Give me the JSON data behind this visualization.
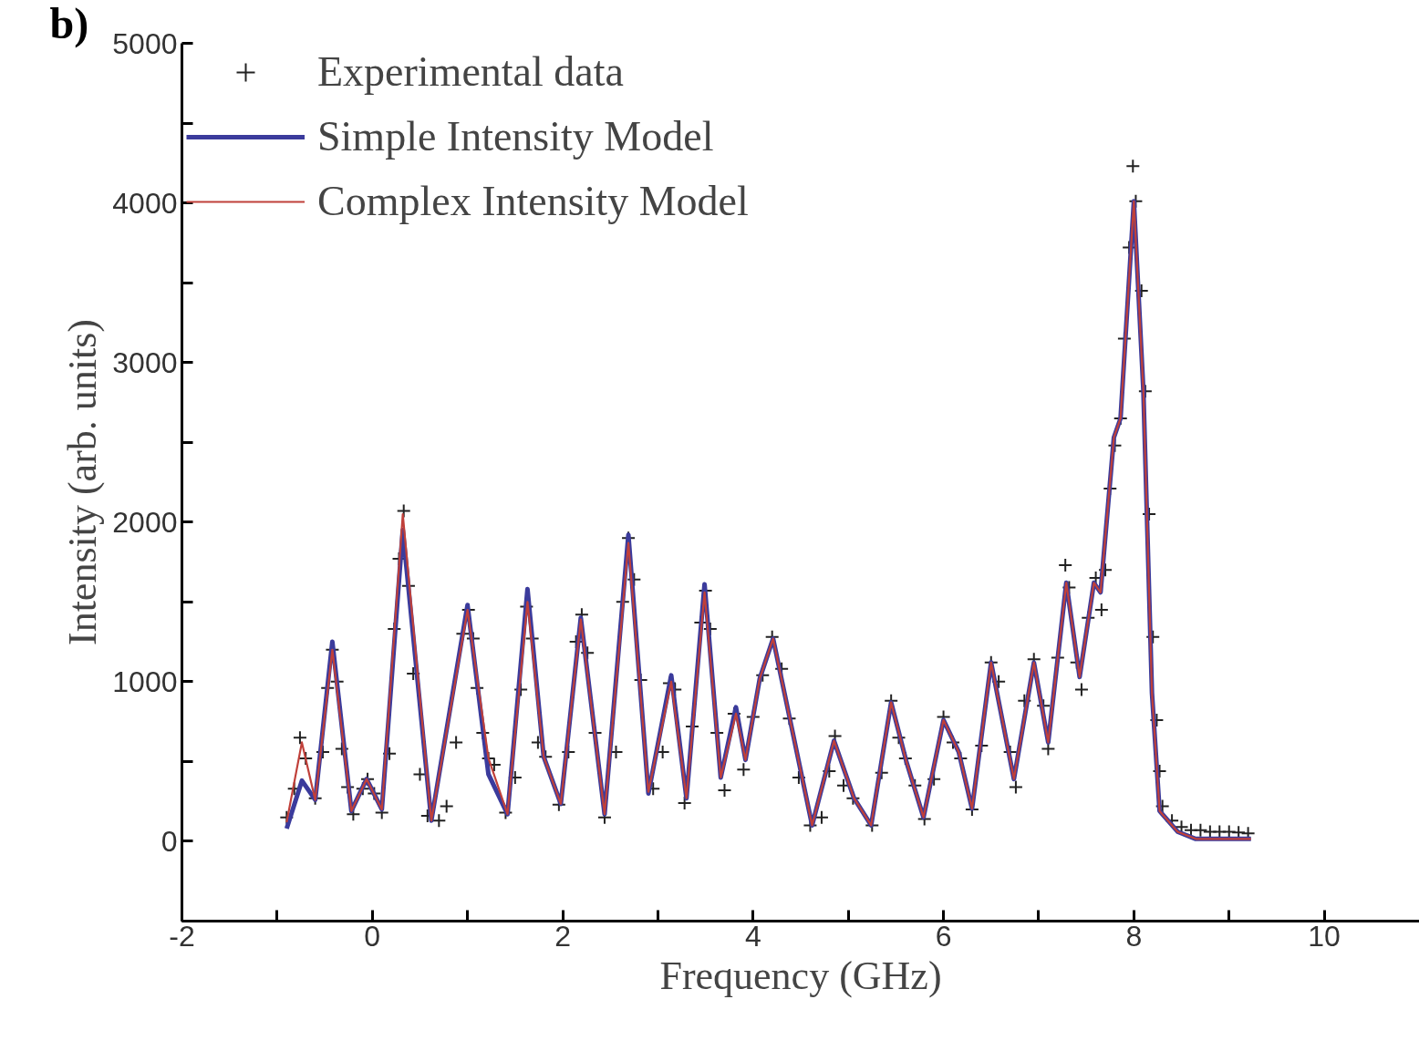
{
  "chart_data": {
    "type": "line",
    "xlabel": "Frequency (GHz)",
    "ylabel": "Intensity (arb. units)",
    "annotations": [
      "b)"
    ],
    "xlim": [
      -2,
      11
    ],
    "ylim": [
      -500,
      5000
    ],
    "xticks": [
      -2,
      {
        "value": -1,
        "label": null
      },
      0,
      {
        "value": 1,
        "label": null
      },
      2,
      {
        "value": 3,
        "label": null
      },
      4,
      {
        "value": 5,
        "label": null
      },
      6,
      {
        "value": 7,
        "label": null
      },
      8,
      {
        "value": 9,
        "label": null
      },
      10
    ],
    "yticks": [
      {
        "value": -500,
        "label": null
      },
      0,
      {
        "value": 500,
        "label": null
      },
      1000,
      {
        "value": 1500,
        "label": null
      },
      2000,
      {
        "value": 2500,
        "label": null
      },
      3000,
      {
        "value": 3500,
        "label": null
      },
      4000,
      {
        "value": 4500,
        "label": null
      },
      5000
    ],
    "grid": false,
    "legend": "top left",
    "series": [
      {
        "name": "Experimental data",
        "type": "scatter",
        "marker": "cross",
        "color": "#222222",
        "x": [
          -0.9,
          -0.82,
          -0.76,
          -0.7,
          -0.6,
          -0.52,
          -0.47,
          -0.42,
          -0.37,
          -0.32,
          -0.26,
          -0.2,
          -0.1,
          -0.05,
          0.02,
          0.1,
          0.18,
          0.23,
          0.28,
          0.33,
          0.38,
          0.43,
          0.5,
          0.58,
          0.7,
          0.78,
          0.88,
          0.95,
          1.01,
          1.06,
          1.1,
          1.16,
          1.22,
          1.28,
          1.4,
          1.5,
          1.56,
          1.62,
          1.68,
          1.74,
          1.82,
          1.96,
          2.06,
          2.14,
          2.2,
          2.26,
          2.34,
          2.44,
          2.56,
          2.63,
          2.69,
          2.75,
          2.82,
          2.95,
          3.05,
          3.12,
          3.18,
          3.28,
          3.36,
          3.45,
          3.5,
          3.55,
          3.62,
          3.7,
          3.8,
          3.9,
          4.0,
          4.1,
          4.2,
          4.3,
          4.38,
          4.48,
          4.6,
          4.72,
          4.8,
          4.86,
          4.95,
          5.05,
          5.25,
          5.35,
          5.45,
          5.53,
          5.6,
          5.7,
          5.8,
          5.9,
          6.0,
          6.1,
          6.18,
          6.3,
          6.4,
          6.5,
          6.58,
          6.7,
          6.76,
          6.85,
          6.95,
          7.05,
          7.1,
          7.2,
          7.28,
          7.32,
          7.4,
          7.45,
          7.52,
          7.6,
          7.66,
          7.7,
          7.75,
          7.8,
          7.86,
          7.9,
          7.95,
          7.99,
          8.02,
          8.08,
          8.12,
          8.16,
          8.2,
          8.24,
          8.27,
          8.3,
          8.4,
          8.5,
          8.6,
          8.7,
          8.8,
          8.9,
          9.0,
          9.1,
          9.2
        ],
        "values": [
          150,
          330,
          650,
          520,
          270,
          560,
          960,
          1200,
          1000,
          580,
          340,
          170,
          330,
          390,
          300,
          180,
          550,
          1330,
          1770,
          2070,
          1600,
          1050,
          420,
          160,
          130,
          220,
          620,
          1300,
          1450,
          1270,
          960,
          680,
          520,
          480,
          180,
          400,
          950,
          1470,
          1270,
          620,
          530,
          230,
          560,
          1250,
          1420,
          1180,
          680,
          150,
          560,
          1500,
          1900,
          1640,
          1010,
          330,
          560,
          990,
          950,
          240,
          720,
          1370,
          1570,
          1330,
          680,
          320,
          800,
          450,
          780,
          1040,
          1280,
          1080,
          770,
          400,
          100,
          150,
          440,
          660,
          350,
          270,
          100,
          430,
          880,
          650,
          520,
          350,
          140,
          390,
          780,
          620,
          520,
          200,
          600,
          1120,
          1000,
          560,
          340,
          880,
          1140,
          850,
          580,
          1150,
          1730,
          1590,
          1120,
          950,
          1400,
          1650,
          1450,
          1700,
          2210,
          2480,
          2650,
          3150,
          3720,
          4230,
          4010,
          3450,
          2820,
          2050,
          1280,
          760,
          440,
          220,
          130,
          90,
          70,
          70,
          60,
          60,
          60,
          55,
          50
        ]
      },
      {
        "name": "Simple Intensity Model",
        "type": "line",
        "color": "#3b3b9c",
        "x": [
          -0.9,
          -0.74,
          -0.6,
          -0.42,
          -0.22,
          -0.06,
          0.1,
          0.32,
          0.62,
          1.0,
          1.22,
          1.42,
          1.63,
          1.8,
          1.98,
          2.19,
          2.44,
          2.69,
          2.9,
          3.14,
          3.3,
          3.49,
          3.66,
          3.82,
          3.92,
          4.07,
          4.21,
          4.62,
          4.85,
          5.06,
          5.24,
          5.45,
          5.61,
          5.79,
          6.0,
          6.16,
          6.3,
          6.5,
          6.74,
          6.95,
          7.1,
          7.29,
          7.43,
          7.58,
          7.65,
          7.79,
          7.86,
          8.0,
          8.1,
          8.19,
          8.27,
          8.46,
          8.65,
          9.23
        ],
        "values": [
          80,
          380,
          260,
          1250,
          190,
          390,
          200,
          1950,
          130,
          1480,
          420,
          170,
          1580,
          530,
          235,
          1400,
          170,
          1920,
          300,
          1040,
          270,
          1610,
          400,
          840,
          510,
          1020,
          1270,
          100,
          630,
          270,
          100,
          870,
          500,
          150,
          760,
          560,
          205,
          1120,
          390,
          1120,
          620,
          1620,
          1030,
          1620,
          1560,
          2530,
          2650,
          4010,
          2820,
          930,
          190,
          60,
          15,
          15
        ]
      },
      {
        "name": "Complex Intensity Model",
        "type": "line",
        "color": "#c0403a",
        "x": [
          -0.9,
          -0.74,
          -0.6,
          -0.42,
          -0.22,
          -0.06,
          0.1,
          0.32,
          0.62,
          1.0,
          1.22,
          1.42,
          1.63,
          1.8,
          1.98,
          2.19,
          2.44,
          2.69,
          2.9,
          3.14,
          3.3,
          3.49,
          3.66,
          3.82,
          3.92,
          4.07,
          4.21,
          4.62,
          4.85,
          5.06,
          5.24,
          5.45,
          5.61,
          5.79,
          6.0,
          6.16,
          6.3,
          6.5,
          6.74,
          6.95,
          7.1,
          7.29,
          7.43,
          7.58,
          7.65,
          7.79,
          7.86,
          8.0,
          8.1,
          8.19,
          8.27,
          8.46,
          8.65,
          9.23
        ],
        "values": [
          120,
          620,
          260,
          1200,
          190,
          390,
          200,
          2050,
          130,
          1450,
          520,
          170,
          1500,
          530,
          235,
          1390,
          170,
          1870,
          310,
          1000,
          270,
          1560,
          400,
          800,
          510,
          1020,
          1270,
          100,
          630,
          270,
          100,
          870,
          500,
          150,
          760,
          560,
          205,
          1120,
          390,
          1120,
          620,
          1620,
          1030,
          1620,
          1560,
          2530,
          2650,
          4010,
          2820,
          930,
          190,
          60,
          15,
          15
        ]
      }
    ]
  }
}
